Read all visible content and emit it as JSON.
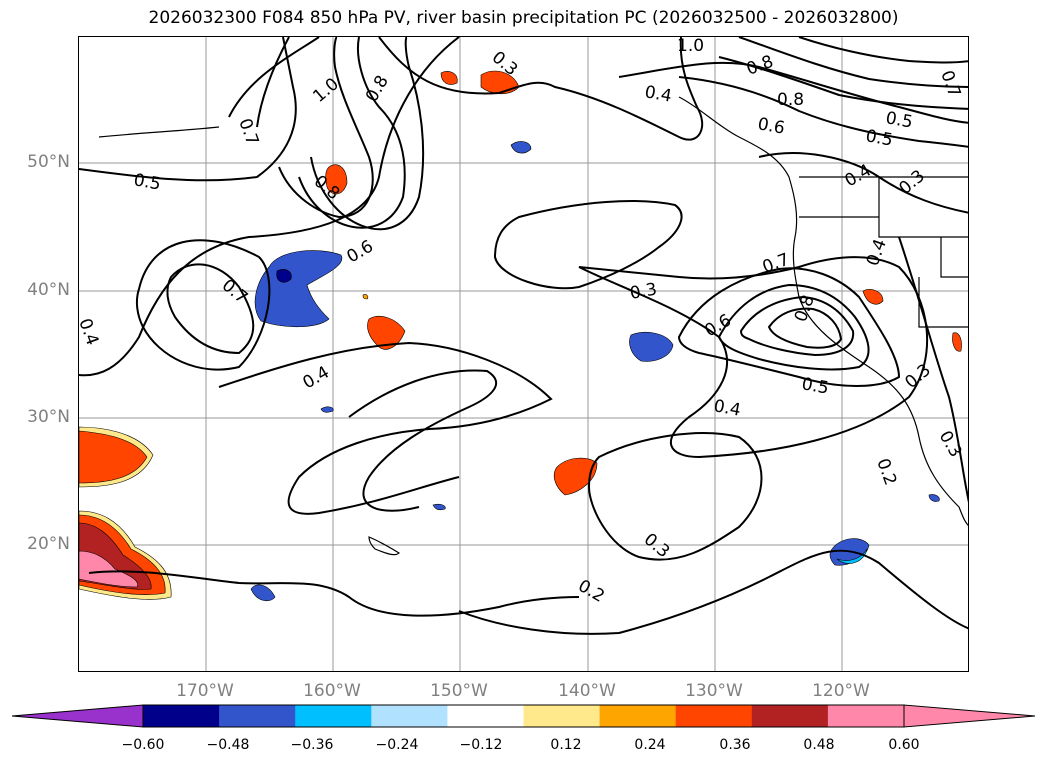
{
  "title": "2026032300 F084 850 hPa PV, river basin precipitation PC (2026032500 - 2026032800)",
  "map": {
    "lat_labels": [
      "50°N",
      "40°N",
      "30°N",
      "20°N"
    ],
    "lon_labels": [
      "170°W",
      "160°W",
      "150°W",
      "140°W",
      "130°W",
      "120°W"
    ],
    "contour_labels": [
      "1.0",
      "0.3",
      "0.8",
      "0.8",
      "0.7",
      "0.4",
      "0.6",
      "0.5",
      "0.7",
      "0.5",
      "0.8",
      "0.6",
      "0.7",
      "0.4",
      "0.4",
      "0.3",
      "0.6",
      "0.8",
      "0.4",
      "0.3",
      "0.7",
      "0.5",
      "0.4",
      "0.2",
      "0.3",
      "0.2",
      "0.3",
      "0.3",
      "0.5",
      "0.4",
      "1.0",
      "0.8"
    ],
    "coastline_color": "#000000",
    "contour_color": "#000000"
  },
  "colorbar": {
    "ticks": [
      "−0.60",
      "−0.48",
      "−0.36",
      "−0.24",
      "−0.12",
      "0.12",
      "0.24",
      "0.36",
      "0.48",
      "0.60"
    ],
    "colors": [
      "#9932cc",
      "#00008b",
      "#3355cc",
      "#00bfff",
      "#b0e2ff",
      "#ffffff",
      "#ffe98a",
      "#ffa500",
      "#ff4500",
      "#b22222",
      "#ff88aa",
      "#ff88aa"
    ]
  }
}
